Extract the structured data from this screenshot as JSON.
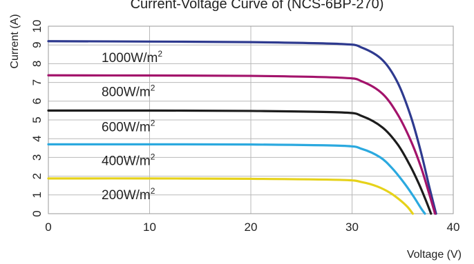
{
  "chart_data": {
    "type": "line",
    "title": "Current-Voltage Curve  of (NCS-6BP-270)",
    "xlabel": "Voltage (V)",
    "ylabel": "Current (A)",
    "xlim": [
      0,
      40
    ],
    "ylim": [
      0,
      10
    ],
    "x_ticks": [
      "0",
      "10",
      "20",
      "30",
      "40"
    ],
    "y_ticks": [
      "0",
      "1",
      "2",
      "3",
      "4",
      "5",
      "6",
      "7",
      "8",
      "9",
      "10"
    ],
    "grid": true,
    "series": [
      {
        "name": "1000W/m",
        "sup": "2",
        "color": "#2e3a8f",
        "points": [
          [
            0,
            9.2
          ],
          [
            10,
            9.18
          ],
          [
            20,
            9.15
          ],
          [
            29,
            9.05
          ],
          [
            31,
            8.85
          ],
          [
            33,
            8.2
          ],
          [
            34.5,
            7.0
          ],
          [
            35.8,
            5.2
          ],
          [
            36.8,
            3.3
          ],
          [
            37.6,
            1.5
          ],
          [
            38.3,
            0
          ]
        ]
      },
      {
        "name": "800W/m",
        "sup": "2",
        "color": "#a3136b",
        "points": [
          [
            0,
            7.38
          ],
          [
            10,
            7.37
          ],
          [
            20,
            7.35
          ],
          [
            29,
            7.25
          ],
          [
            31,
            7.05
          ],
          [
            33,
            6.4
          ],
          [
            34.5,
            5.3
          ],
          [
            35.8,
            3.9
          ],
          [
            36.8,
            2.5
          ],
          [
            37.6,
            1.1
          ],
          [
            38.2,
            0
          ]
        ]
      },
      {
        "name": "600W/m",
        "sup": "2",
        "color": "#1c1c1c",
        "points": [
          [
            0,
            5.5
          ],
          [
            10,
            5.5
          ],
          [
            20,
            5.48
          ],
          [
            29,
            5.4
          ],
          [
            31,
            5.2
          ],
          [
            33,
            4.6
          ],
          [
            34.5,
            3.7
          ],
          [
            35.7,
            2.6
          ],
          [
            36.6,
            1.6
          ],
          [
            37.3,
            0.7
          ],
          [
            37.8,
            0
          ]
        ]
      },
      {
        "name": "400W/m",
        "sup": "2",
        "color": "#2ba9df",
        "points": [
          [
            0,
            3.7
          ],
          [
            10,
            3.7
          ],
          [
            20,
            3.69
          ],
          [
            29,
            3.62
          ],
          [
            31,
            3.45
          ],
          [
            32.8,
            3.0
          ],
          [
            34,
            2.4
          ],
          [
            35.2,
            1.6
          ],
          [
            36.1,
            0.9
          ],
          [
            36.8,
            0.3
          ],
          [
            37.2,
            0
          ]
        ]
      },
      {
        "name": "200W/m",
        "sup": "2",
        "color": "#e6d21a",
        "points": [
          [
            0,
            1.88
          ],
          [
            10,
            1.88
          ],
          [
            20,
            1.86
          ],
          [
            29,
            1.8
          ],
          [
            31,
            1.68
          ],
          [
            32.5,
            1.45
          ],
          [
            33.8,
            1.1
          ],
          [
            34.8,
            0.7
          ],
          [
            35.5,
            0.35
          ],
          [
            36.0,
            0
          ]
        ]
      }
    ]
  }
}
